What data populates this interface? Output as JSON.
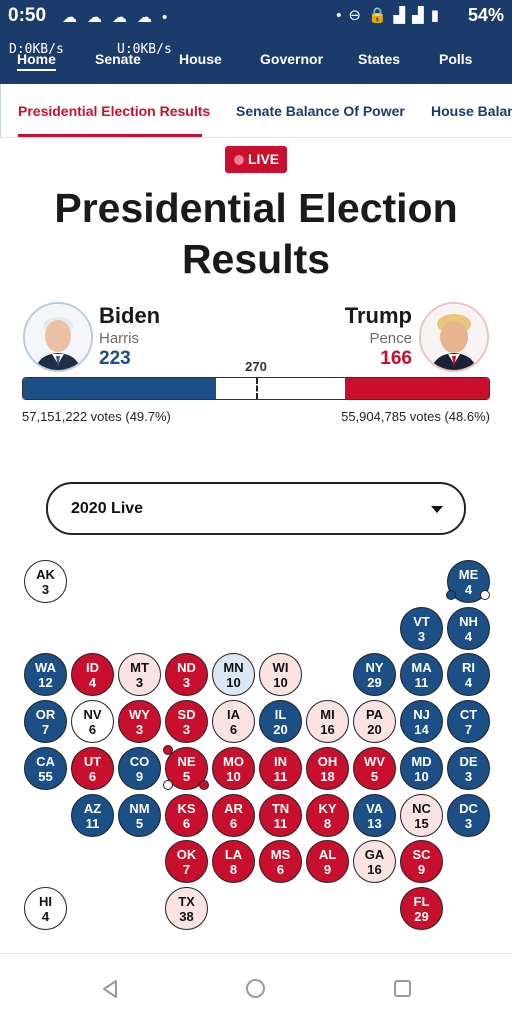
{
  "status_bar": {
    "time": "0:50",
    "battery": "54%",
    "icons": [
      "messenger-icon",
      "messenger-icon",
      "messenger-icon",
      "messenger-icon",
      "dot-icon",
      "dot-icon",
      "dnd-icon",
      "lock-icon",
      "signal-icon",
      "network-4g-icon",
      "signal-icon",
      "battery-icon"
    ]
  },
  "nav": {
    "download_speed": "D:0KB/s",
    "upload_speed": "U:0KB/s",
    "items": [
      "Home",
      "Senate",
      "House",
      "Governor",
      "States",
      "Polls"
    ],
    "active": "Home"
  },
  "tabs": {
    "items": [
      "Presidential Election Results",
      "Senate Balance Of Power",
      "House Balan"
    ],
    "active": "Presidential Election Results"
  },
  "live_badge": "LIVE",
  "page_title": "Presidential Election Results",
  "candidates": {
    "dem": {
      "name": "Biden",
      "running_mate": "Harris",
      "electoral_votes": "223",
      "votes_text": "57,151,222 votes (49.7%)",
      "color": "#1b4f86"
    },
    "rep": {
      "name": "Trump",
      "running_mate": "Pence",
      "electoral_votes": "166",
      "votes_text": "55,904,785 votes (48.6%)",
      "color": "#c8102e"
    }
  },
  "threshold": "270",
  "ev_total": 538,
  "ev_dem": 223,
  "ev_rep": 166,
  "year_select": "2020 Live",
  "states": [
    {
      "ab": "AK",
      "n": "3",
      "s": "u",
      "row": 0,
      "col": 0
    },
    {
      "ab": "ME",
      "n": "4",
      "s": "d",
      "row": 0,
      "col": 9
    },
    {
      "ab": "VT",
      "n": "3",
      "s": "d",
      "row": 1,
      "col": 8
    },
    {
      "ab": "NH",
      "n": "4",
      "s": "d",
      "row": 1,
      "col": 9
    },
    {
      "ab": "WA",
      "n": "12",
      "s": "d",
      "row": 2,
      "col": 0
    },
    {
      "ab": "ID",
      "n": "4",
      "s": "r",
      "row": 2,
      "col": 1
    },
    {
      "ab": "MT",
      "n": "3",
      "s": "lr",
      "row": 2,
      "col": 2
    },
    {
      "ab": "ND",
      "n": "3",
      "s": "r",
      "row": 2,
      "col": 3
    },
    {
      "ab": "MN",
      "n": "10",
      "s": "ld",
      "row": 2,
      "col": 4
    },
    {
      "ab": "WI",
      "n": "10",
      "s": "lr",
      "row": 2,
      "col": 5
    },
    {
      "ab": "NY",
      "n": "29",
      "s": "d",
      "row": 2,
      "col": 7
    },
    {
      "ab": "MA",
      "n": "11",
      "s": "d",
      "row": 2,
      "col": 8
    },
    {
      "ab": "RI",
      "n": "4",
      "s": "d",
      "row": 2,
      "col": 9
    },
    {
      "ab": "OR",
      "n": "7",
      "s": "d",
      "row": 3,
      "col": 0
    },
    {
      "ab": "NV",
      "n": "6",
      "s": "u",
      "row": 3,
      "col": 1
    },
    {
      "ab": "WY",
      "n": "3",
      "s": "r",
      "row": 3,
      "col": 2
    },
    {
      "ab": "SD",
      "n": "3",
      "s": "r",
      "row": 3,
      "col": 3
    },
    {
      "ab": "IA",
      "n": "6",
      "s": "lr",
      "row": 3,
      "col": 4
    },
    {
      "ab": "IL",
      "n": "20",
      "s": "d",
      "row": 3,
      "col": 5
    },
    {
      "ab": "MI",
      "n": "16",
      "s": "lr",
      "row": 3,
      "col": 6
    },
    {
      "ab": "PA",
      "n": "20",
      "s": "lr",
      "row": 3,
      "col": 7
    },
    {
      "ab": "NJ",
      "n": "14",
      "s": "d",
      "row": 3,
      "col": 8
    },
    {
      "ab": "CT",
      "n": "7",
      "s": "d",
      "row": 3,
      "col": 9
    },
    {
      "ab": "CA",
      "n": "55",
      "s": "d",
      "row": 4,
      "col": 0
    },
    {
      "ab": "UT",
      "n": "6",
      "s": "r",
      "row": 4,
      "col": 1
    },
    {
      "ab": "CO",
      "n": "9",
      "s": "d",
      "row": 4,
      "col": 2
    },
    {
      "ab": "NE",
      "n": "5",
      "s": "r",
      "row": 4,
      "col": 3
    },
    {
      "ab": "MO",
      "n": "10",
      "s": "r",
      "row": 4,
      "col": 4
    },
    {
      "ab": "IN",
      "n": "11",
      "s": "r",
      "row": 4,
      "col": 5
    },
    {
      "ab": "OH",
      "n": "18",
      "s": "r",
      "row": 4,
      "col": 6
    },
    {
      "ab": "WV",
      "n": "5",
      "s": "r",
      "row": 4,
      "col": 7
    },
    {
      "ab": "MD",
      "n": "10",
      "s": "d",
      "row": 4,
      "col": 8
    },
    {
      "ab": "DE",
      "n": "3",
      "s": "d",
      "row": 4,
      "col": 9
    },
    {
      "ab": "AZ",
      "n": "11",
      "s": "d",
      "row": 5,
      "col": 1
    },
    {
      "ab": "NM",
      "n": "5",
      "s": "d",
      "row": 5,
      "col": 2
    },
    {
      "ab": "KS",
      "n": "6",
      "s": "r",
      "row": 5,
      "col": 3
    },
    {
      "ab": "AR",
      "n": "6",
      "s": "r",
      "row": 5,
      "col": 4
    },
    {
      "ab": "TN",
      "n": "11",
      "s": "r",
      "row": 5,
      "col": 5
    },
    {
      "ab": "KY",
      "n": "8",
      "s": "r",
      "row": 5,
      "col": 6
    },
    {
      "ab": "VA",
      "n": "13",
      "s": "d",
      "row": 5,
      "col": 7
    },
    {
      "ab": "NC",
      "n": "15",
      "s": "lr",
      "row": 5,
      "col": 8
    },
    {
      "ab": "DC",
      "n": "3",
      "s": "d",
      "row": 5,
      "col": 9
    },
    {
      "ab": "OK",
      "n": "7",
      "s": "r",
      "row": 6,
      "col": 3
    },
    {
      "ab": "LA",
      "n": "8",
      "s": "r",
      "row": 6,
      "col": 4
    },
    {
      "ab": "MS",
      "n": "6",
      "s": "r",
      "row": 6,
      "col": 5
    },
    {
      "ab": "AL",
      "n": "9",
      "s": "r",
      "row": 6,
      "col": 6
    },
    {
      "ab": "GA",
      "n": "16",
      "s": "lr",
      "row": 6,
      "col": 7
    },
    {
      "ab": "SC",
      "n": "9",
      "s": "r",
      "row": 6,
      "col": 8
    },
    {
      "ab": "HI",
      "n": "4",
      "s": "u",
      "row": 7,
      "col": 0
    },
    {
      "ab": "TX",
      "n": "38",
      "s": "lr",
      "row": 7,
      "col": 3
    },
    {
      "ab": "FL",
      "n": "29",
      "s": "r",
      "row": 7,
      "col": 8
    }
  ],
  "district_pips": [
    {
      "state": "ME",
      "colors": [
        "d",
        "u"
      ]
    },
    {
      "state": "NE",
      "colors": [
        "r",
        "u",
        "r"
      ]
    }
  ],
  "system_nav": [
    "back-icon",
    "home-icon",
    "recents-icon"
  ]
}
